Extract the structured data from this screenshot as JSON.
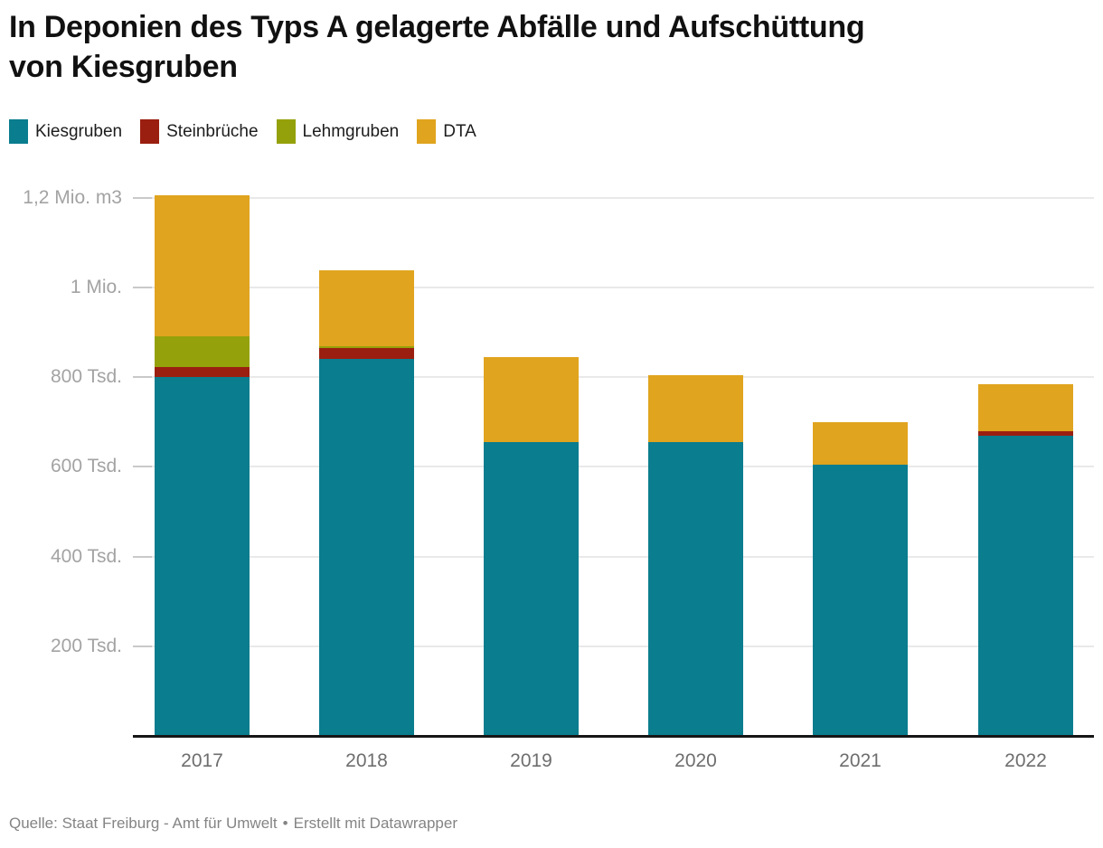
{
  "header": {
    "title_lines": [
      "In Deponien des Typs A gelagerte Abfälle und Aufschüttung",
      "von Kiesgruben"
    ]
  },
  "footer": {
    "source": "Quelle: Staat Freiburg - Amt für Umwelt",
    "separator": "•",
    "attribution": "Erstellt mit Datawrapper"
  },
  "chart_data": {
    "type": "bar",
    "stacked": true,
    "title": "In Deponien des Typs A gelagerte Abfälle und Aufschüttung von Kiesgruben",
    "categories": [
      "2017",
      "2018",
      "2019",
      "2020",
      "2021",
      "2022"
    ],
    "series": [
      {
        "name": "Kiesgruben",
        "color": "#0a7d8e",
        "values": [
          800,
          840,
          655,
          655,
          605,
          670
        ]
      },
      {
        "name": "Steinbrüche",
        "color": "#9a1f10",
        "values": [
          22,
          25,
          0,
          0,
          0,
          10
        ]
      },
      {
        "name": "Lehmgruben",
        "color": "#95a10b",
        "values": [
          68,
          5,
          0,
          0,
          0,
          0
        ]
      },
      {
        "name": "DTA",
        "color": "#e0a41e",
        "values": [
          315,
          170,
          190,
          150,
          95,
          105
        ]
      }
    ],
    "totals": [
      1205,
      1040,
      845,
      805,
      700,
      785
    ],
    "values_unit": "Tsd. m3",
    "ylabel": "",
    "xlabel": "",
    "ylim": [
      0,
      1240
    ],
    "grid": "horizontal",
    "legend_position": "top",
    "yticks": [
      {
        "value": 200,
        "label": "200 Tsd."
      },
      {
        "value": 400,
        "label": "400 Tsd."
      },
      {
        "value": 600,
        "label": "600 Tsd."
      },
      {
        "value": 800,
        "label": "800 Tsd."
      },
      {
        "value": 1000,
        "label": "1 Mio."
      },
      {
        "value": 1200,
        "label": "1,2 Mio. m3"
      }
    ]
  }
}
